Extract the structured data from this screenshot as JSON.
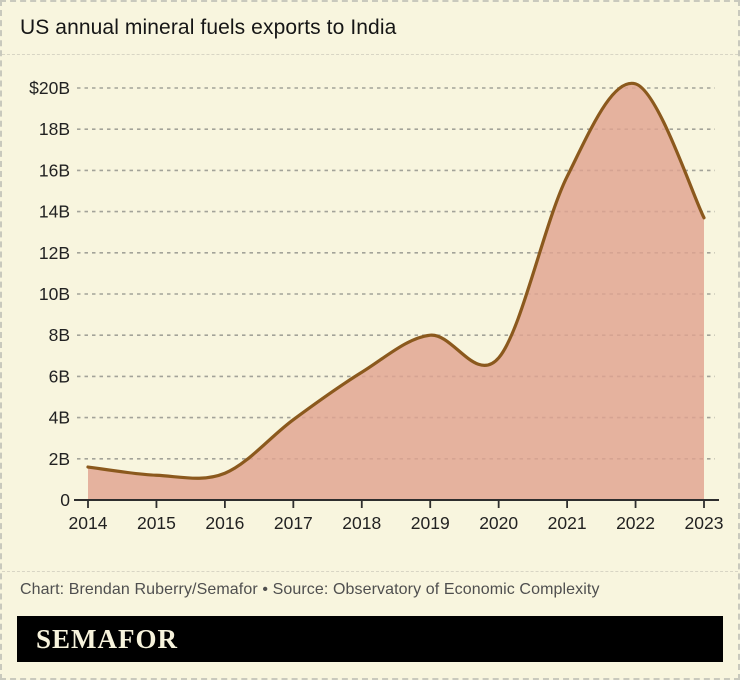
{
  "title": "US annual mineral fuels exports to India",
  "caption": "Chart: Brendan Ruberry/Semafor • Source: Observatory of Economic Complexity",
  "logo_text": "SEMAFOR",
  "colors": {
    "background": "#F8F5DE",
    "area_fill": "rgba(225,163,144,0.82)",
    "line": "#8B591D",
    "grid": "#A3A399",
    "axis": "#2E2E2E",
    "tick_label": "#222222",
    "caption": "#4F4F4F",
    "logo_bg": "#000000",
    "logo_text_color": "#F7F3DC"
  },
  "chart_data": {
    "type": "area",
    "title": "US annual mineral fuels exports to India",
    "unit": "USD billions",
    "x": [
      2014,
      2015,
      2016,
      2017,
      2018,
      2019,
      2020,
      2021,
      2022,
      2023
    ],
    "values": [
      1.6,
      1.2,
      1.3,
      3.9,
      6.2,
      8.0,
      6.9,
      15.7,
      20.2,
      13.7
    ],
    "y_ticks": [
      {
        "value": 20,
        "label": "$20B"
      },
      {
        "value": 18,
        "label": "18B"
      },
      {
        "value": 16,
        "label": "16B"
      },
      {
        "value": 14,
        "label": "14B"
      },
      {
        "value": 12,
        "label": "12B"
      },
      {
        "value": 10,
        "label": "10B"
      },
      {
        "value": 8,
        "label": "8B"
      },
      {
        "value": 6,
        "label": "6B"
      },
      {
        "value": 4,
        "label": "4B"
      },
      {
        "value": 2,
        "label": "2B"
      },
      {
        "value": 0,
        "label": "0"
      }
    ],
    "ylim": [
      0,
      20.5
    ],
    "grid": true,
    "legend": false,
    "smoothing": "spline"
  }
}
